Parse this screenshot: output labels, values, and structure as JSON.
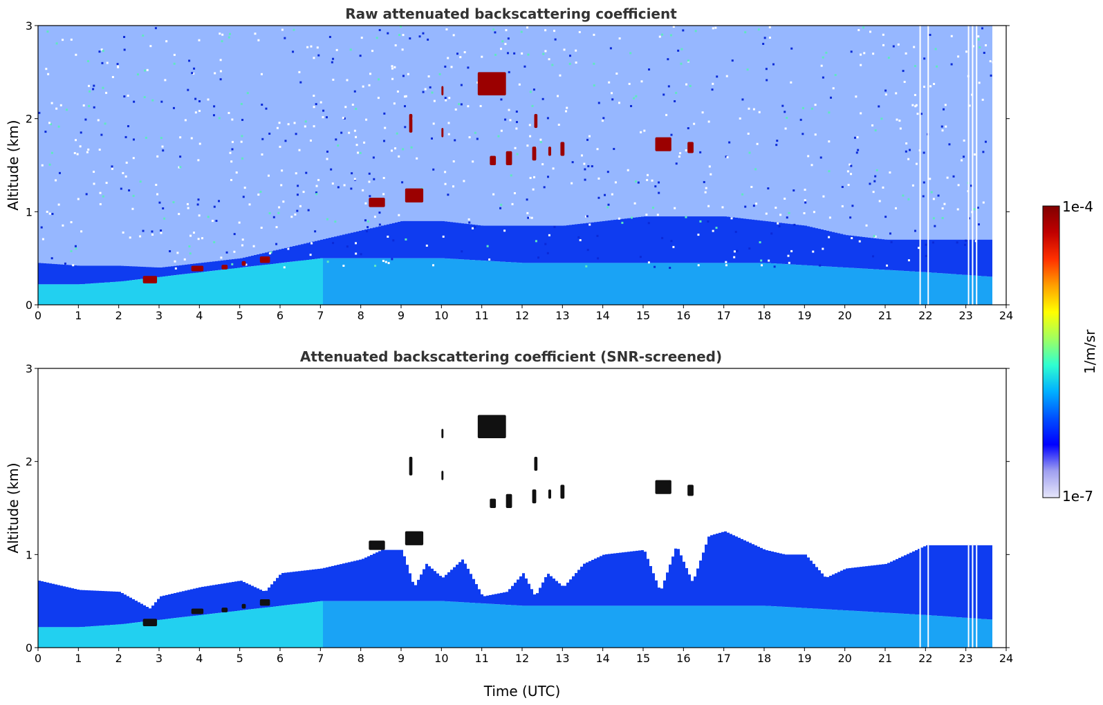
{
  "chart_data": [
    {
      "type": "heatmap",
      "title": "Raw attenuated backscattering coefficient",
      "xlabel": "",
      "ylabel": "Altitude (km)",
      "xlim": [
        0,
        24
      ],
      "ylim": [
        0,
        3
      ],
      "xticks": [
        "0",
        "1",
        "2",
        "3",
        "4",
        "5",
        "6",
        "7",
        "8",
        "9",
        "10",
        "11",
        "12",
        "13",
        "14",
        "15",
        "16",
        "17",
        "18",
        "19",
        "20",
        "21",
        "22",
        "23",
        "24"
      ],
      "yticks": [
        "0",
        "1",
        "2",
        "3"
      ],
      "data_end_time": 23.65,
      "gaps_utc": [
        21.85,
        22.05,
        23.05,
        23.15,
        23.25
      ],
      "boundary_layer_top_km": [
        [
          0,
          0.45
        ],
        [
          1,
          0.42
        ],
        [
          2,
          0.42
        ],
        [
          3,
          0.4
        ],
        [
          4,
          0.45
        ],
        [
          5,
          0.5
        ],
        [
          6,
          0.6
        ],
        [
          7,
          0.7
        ],
        [
          8,
          0.8
        ],
        [
          9,
          0.9
        ],
        [
          10,
          0.9
        ],
        [
          11,
          0.85
        ],
        [
          12,
          0.85
        ],
        [
          13,
          0.85
        ],
        [
          14,
          0.9
        ],
        [
          15,
          0.95
        ],
        [
          16,
          0.95
        ],
        [
          17,
          0.95
        ],
        [
          18,
          0.9
        ],
        [
          19,
          0.85
        ],
        [
          20,
          0.75
        ],
        [
          21,
          0.7
        ],
        [
          22,
          0.7
        ],
        [
          23,
          0.7
        ],
        [
          23.65,
          0.7
        ]
      ],
      "aerosol_core_top_km": [
        [
          0,
          0.22
        ],
        [
          1,
          0.22
        ],
        [
          2,
          0.25
        ],
        [
          3,
          0.3
        ],
        [
          4,
          0.35
        ],
        [
          5,
          0.4
        ],
        [
          6,
          0.45
        ],
        [
          7,
          0.5
        ],
        [
          8,
          0.5
        ],
        [
          9,
          0.5
        ],
        [
          10,
          0.5
        ],
        [
          12,
          0.45
        ],
        [
          14,
          0.45
        ],
        [
          16,
          0.45
        ],
        [
          18,
          0.45
        ],
        [
          20,
          0.4
        ],
        [
          22,
          0.35
        ],
        [
          23.65,
          0.3
        ]
      ],
      "cloud_features": [
        {
          "t0": 2.6,
          "t1": 2.95,
          "z0": 0.23,
          "z1": 0.31
        },
        {
          "t0": 3.8,
          "t1": 4.1,
          "z0": 0.36,
          "z1": 0.42
        },
        {
          "t0": 4.55,
          "t1": 4.7,
          "z0": 0.38,
          "z1": 0.43
        },
        {
          "t0": 5.05,
          "t1": 5.15,
          "z0": 0.42,
          "z1": 0.47
        },
        {
          "t0": 5.5,
          "t1": 5.75,
          "z0": 0.45,
          "z1": 0.52
        },
        {
          "t0": 8.2,
          "t1": 8.6,
          "z0": 1.05,
          "z1": 1.15
        },
        {
          "t0": 9.1,
          "t1": 9.55,
          "z0": 1.1,
          "z1": 1.25
        },
        {
          "t0": 9.2,
          "t1": 9.28,
          "z0": 1.85,
          "z1": 2.05
        },
        {
          "t0": 10.0,
          "t1": 10.05,
          "z0": 1.8,
          "z1": 1.9
        },
        {
          "t0": 10.0,
          "t1": 10.05,
          "z0": 2.25,
          "z1": 2.35
        },
        {
          "t0": 10.9,
          "t1": 11.6,
          "z0": 2.25,
          "z1": 2.5
        },
        {
          "t0": 11.2,
          "t1": 11.35,
          "z0": 1.5,
          "z1": 1.6
        },
        {
          "t0": 11.6,
          "t1": 11.75,
          "z0": 1.5,
          "z1": 1.65
        },
        {
          "t0": 12.25,
          "t1": 12.35,
          "z0": 1.55,
          "z1": 1.7
        },
        {
          "t0": 12.3,
          "t1": 12.38,
          "z0": 1.9,
          "z1": 2.05
        },
        {
          "t0": 12.65,
          "t1": 12.72,
          "z0": 1.6,
          "z1": 1.7
        },
        {
          "t0": 12.95,
          "t1": 13.05,
          "z0": 1.6,
          "z1": 1.75
        },
        {
          "t0": 15.3,
          "t1": 15.7,
          "z0": 1.65,
          "z1": 1.8
        },
        {
          "t0": 16.1,
          "t1": 16.25,
          "z0": 1.63,
          "z1": 1.75
        }
      ]
    },
    {
      "type": "heatmap",
      "title": "Attenuated backscattering coefficient (SNR-screened)",
      "xlabel": "Time (UTC)",
      "ylabel": "Altitude (km)",
      "xlim": [
        0,
        24
      ],
      "ylim": [
        0,
        3
      ],
      "xticks": [
        "0",
        "1",
        "2",
        "3",
        "4",
        "5",
        "6",
        "7",
        "8",
        "9",
        "10",
        "11",
        "12",
        "13",
        "14",
        "15",
        "16",
        "17",
        "18",
        "19",
        "20",
        "21",
        "22",
        "23",
        "24"
      ],
      "yticks": [
        "0",
        "1",
        "2",
        "3"
      ],
      "screened_top_km": [
        [
          0,
          0.72
        ],
        [
          1,
          0.62
        ],
        [
          2,
          0.6
        ],
        [
          2.75,
          0.42
        ],
        [
          3,
          0.55
        ],
        [
          4,
          0.65
        ],
        [
          5,
          0.72
        ],
        [
          5.6,
          0.6
        ],
        [
          6,
          0.8
        ],
        [
          7,
          0.85
        ],
        [
          8,
          0.95
        ],
        [
          8.5,
          1.05
        ],
        [
          9,
          1.05
        ],
        [
          9.3,
          0.65
        ],
        [
          9.6,
          0.9
        ],
        [
          10,
          0.75
        ],
        [
          10.5,
          0.95
        ],
        [
          11,
          0.55
        ],
        [
          11.6,
          0.6
        ],
        [
          12,
          0.8
        ],
        [
          12.3,
          0.55
        ],
        [
          12.6,
          0.8
        ],
        [
          13,
          0.65
        ],
        [
          13.5,
          0.9
        ],
        [
          14,
          1.0
        ],
        [
          15,
          1.05
        ],
        [
          15.4,
          0.6
        ],
        [
          15.8,
          1.1
        ],
        [
          16.2,
          0.7
        ],
        [
          16.6,
          1.2
        ],
        [
          17,
          1.25
        ],
        [
          18,
          1.05
        ],
        [
          18.5,
          1.0
        ],
        [
          19,
          1.0
        ],
        [
          19.5,
          0.75
        ],
        [
          20,
          0.85
        ],
        [
          21,
          0.9
        ],
        [
          22,
          1.1
        ],
        [
          23,
          1.1
        ],
        [
          23.65,
          1.1
        ]
      ]
    }
  ],
  "colorbar": {
    "max_label": "1e-4",
    "min_label": "1e-7",
    "unit_label": "1/m/sr",
    "colors": [
      "#e6e6fa",
      "#a0a0f0",
      "#0000ff",
      "#0050ff",
      "#00b0ff",
      "#30ffd0",
      "#a0ff60",
      "#ffff00",
      "#ffa000",
      "#ff3000",
      "#c00000",
      "#800000"
    ]
  }
}
